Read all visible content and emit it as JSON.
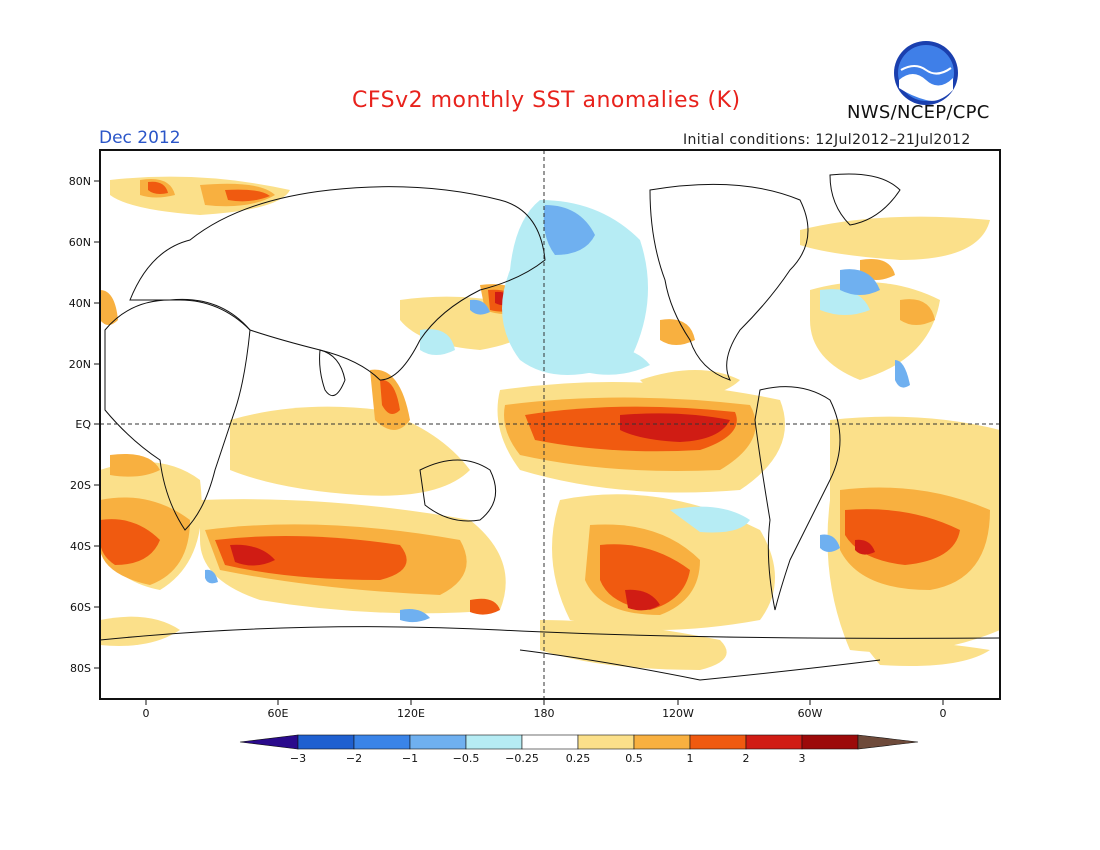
{
  "title": "CFSv2 monthly SST anomalies (K)",
  "valid_month": "Dec 2012",
  "initial_conditions": "Initial conditions: 12Jul2012–21Jul2012",
  "agency": "NWS/NCEP/CPC",
  "logo_text": "NOAA",
  "map": {
    "lat_ticks": [
      "80N",
      "60N",
      "40N",
      "20N",
      "EQ",
      "20S",
      "40S",
      "60S",
      "80S"
    ],
    "lon_ticks": [
      "0",
      "60E",
      "120E",
      "180",
      "120W",
      "60W",
      "0"
    ]
  },
  "colorbar": {
    "labels": [
      "−3",
      "−2",
      "−1",
      "−0.5",
      "−0.25",
      "0.25",
      "0.5",
      "1",
      "2",
      "3"
    ],
    "colors": [
      "#2a0a8c",
      "#1f60d0",
      "#3a84e8",
      "#6fb0f0",
      "#b6ecf4",
      "#ffffff",
      "#fbe08a",
      "#f8b040",
      "#f05a10",
      "#d01c14",
      "#9c0a0a",
      "#6e4a3a"
    ]
  },
  "colors": {
    "ocean_neutral": "#ffffff",
    "coast": "#111111",
    "reference_lines": "#333333"
  }
}
